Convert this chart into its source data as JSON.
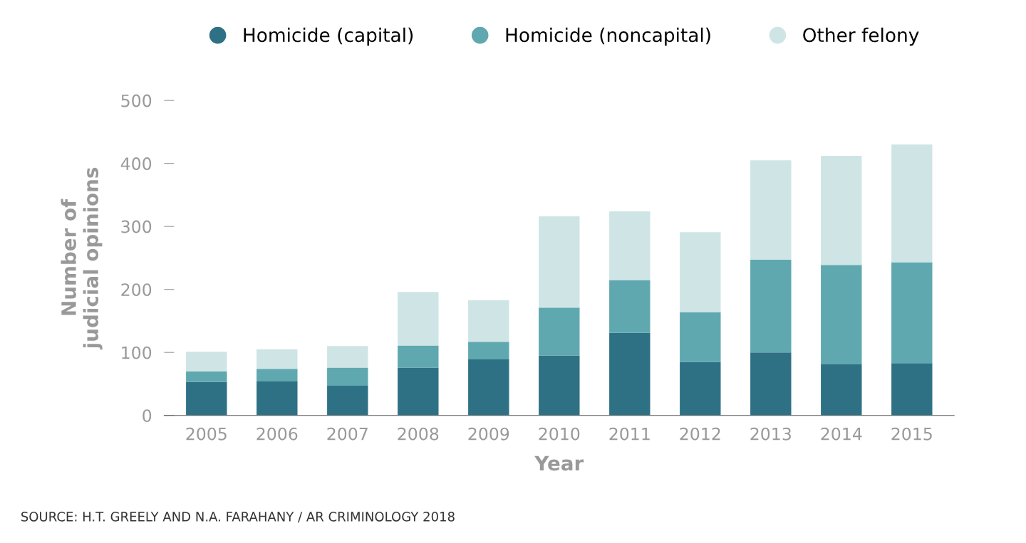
{
  "chart_data": {
    "type": "bar",
    "stacked": true,
    "xlabel": "Year",
    "ylabel": "Number of\njudicial opinions",
    "categories": [
      "2005",
      "2006",
      "2007",
      "2008",
      "2009",
      "2010",
      "2011",
      "2012",
      "2013",
      "2014",
      "2015"
    ],
    "series": [
      {
        "name": "Homicide (capital)",
        "color": "#2e7185",
        "values": [
          53,
          54,
          47,
          76,
          89,
          95,
          131,
          85,
          100,
          81,
          83
        ]
      },
      {
        "name": "Homicide (noncapital)",
        "color": "#5fa8b0",
        "values": [
          17,
          20,
          29,
          35,
          28,
          76,
          84,
          79,
          147,
          158,
          160
        ]
      },
      {
        "name": "Other felony",
        "color": "#cfe5e5",
        "values": [
          31,
          31,
          34,
          85,
          66,
          145,
          109,
          127,
          158,
          173,
          187
        ]
      }
    ],
    "ylim": [
      0,
      500
    ],
    "yticks": [
      0,
      100,
      200,
      300,
      400,
      500
    ],
    "grid": false,
    "legend": "top",
    "annotations": [
      "SOURCE: H.T. GREELY AND N.A. FARAHANY / AR CRIMINOLOGY 2018"
    ]
  }
}
